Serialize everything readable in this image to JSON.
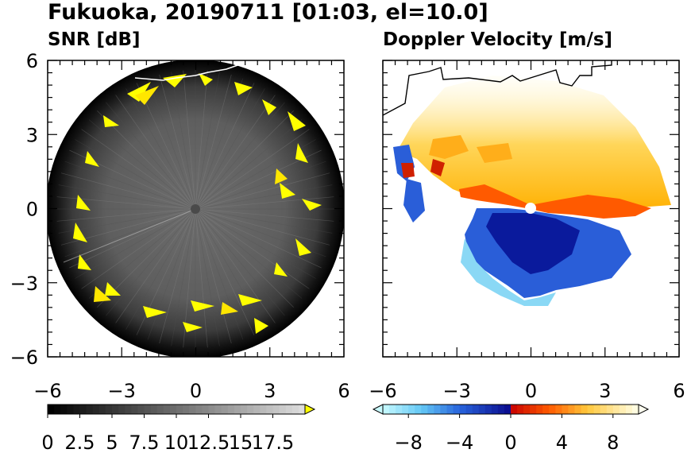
{
  "figure": {
    "title": "Fukuoka, 20190711 [01:03, el=10.0]"
  },
  "chart_data": [
    {
      "type": "heatmap",
      "title": "SNR [dB]",
      "xlim": [
        -6,
        6
      ],
      "ylim": [
        -6,
        6
      ],
      "x_ticks": [
        "−6",
        "−3",
        "0",
        "3",
        "6"
      ],
      "y_ticks": [
        "6",
        "3",
        "0",
        "−3",
        "−6"
      ],
      "colorbar": {
        "ticks": [
          "0",
          "2.5",
          "5",
          "7.5",
          "10",
          "12.5",
          "15",
          "17.5"
        ],
        "range": [
          0,
          20
        ],
        "extend": "max"
      },
      "colors": {
        "low": "#000000",
        "mid": "#7a7a7a",
        "high": "#ffff00",
        "extend": "#ffff00"
      }
    },
    {
      "type": "heatmap",
      "title": "Doppler Velocity [m/s]",
      "xlim": [
        -6,
        6
      ],
      "ylim": [
        -6,
        6
      ],
      "x_ticks": [
        "−6",
        "−3",
        "0",
        "3",
        "6"
      ],
      "y_ticks": [],
      "colorbar": {
        "ticks": [
          "−8",
          "−4",
          "0",
          "4",
          "8"
        ],
        "range": [
          -10,
          10
        ],
        "extend": "both"
      },
      "colors": {
        "neg": "#0000c8",
        "neg_light": "#a0f0ff",
        "pos": "#ff2000",
        "pos_light": "#fffff0"
      }
    }
  ]
}
